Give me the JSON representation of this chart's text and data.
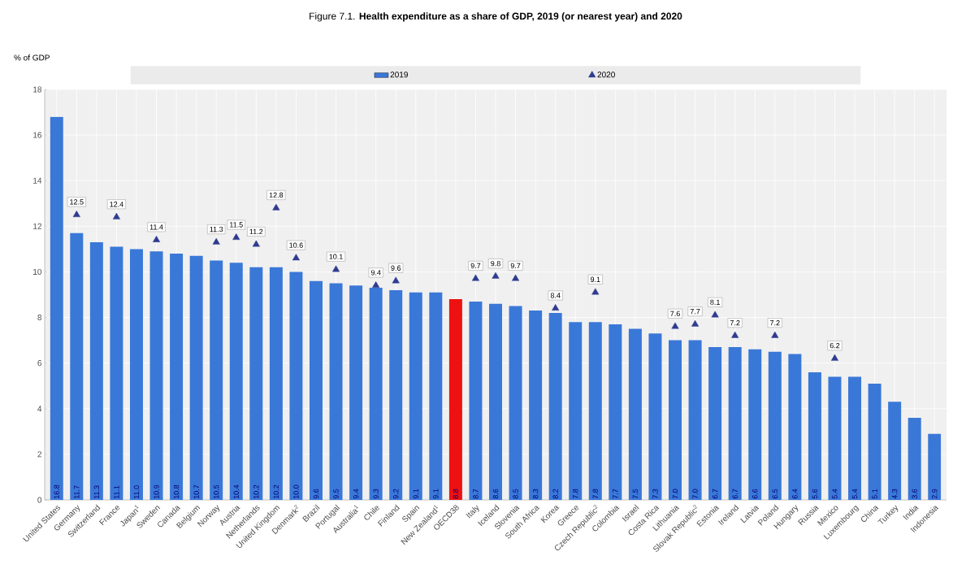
{
  "chart_data": {
    "type": "bar",
    "title": "Figure 7.1. **Health expenditure as a share of GDP, 2019 (or nearest year) and 2020**",
    "ylabel": "% of GDP",
    "categories": [
      "United States",
      "Germany",
      "Switzerland",
      "France",
      "Japan$^{1}$",
      "Sweden",
      "Canada",
      "Belgium",
      "Norway",
      "Austria",
      "Netherlands",
      "United Kingdom",
      "Denmark$^{2}$",
      "Brazil",
      "Portugal",
      "Australia$^{1}$",
      "Chile",
      "Finland",
      "Spain",
      "New Zealand$^{1}$",
      "OECD38",
      "Italy",
      "Iceland",
      "Slovenia",
      "South Africa",
      "Korea",
      "Greece",
      "Czech Republic$^{2}$",
      "Colombia",
      "Israel",
      "Costa Rica",
      "Lithuania",
      "Slovak Republic$^{2}$",
      "Estonia",
      "Ireland",
      "Latvia",
      "Poland",
      "Hungary",
      "Russia",
      "Mexico",
      "Luxembourg",
      "China",
      "Turkey",
      "India",
      "Indonesia"
    ],
    "series": [
      {
        "name": "2019",
        "color": "#3a78d8",
        "colors": [
          "#3a78d8",
          "#3a78d8",
          "#3a78d8",
          "#3a78d8",
          "#3a78d8",
          "#3a78d8",
          "#3a78d8",
          "#3a78d8",
          "#3a78d8",
          "#3a78d8",
          "#3a78d8",
          "#3a78d8",
          "#3a78d8",
          "#3a78d8",
          "#3a78d8",
          "#3a78d8",
          "#3a78d8",
          "#3a78d8",
          "#3a78d8",
          "#3a78d8",
          "#ee1111",
          "#3a78d8",
          "#3a78d8",
          "#3a78d8",
          "#3a78d8",
          "#3a78d8",
          "#3a78d8",
          "#3a78d8",
          "#3a78d8",
          "#3a78d8",
          "#3a78d8",
          "#3a78d8",
          "#3a78d8",
          "#3a78d8",
          "#3a78d8",
          "#3a78d8",
          "#3a78d8",
          "#3a78d8",
          "#3a78d8",
          "#3a78d8",
          "#3a78d8",
          "#3a78d8",
          "#3a78d8",
          "#3a78d8",
          "#3a78d8"
        ],
        "values": [
          16.8,
          11.7,
          11.3,
          11.1,
          11.0,
          10.9,
          10.8,
          10.7,
          10.5,
          10.4,
          10.2,
          10.2,
          10.0,
          9.6,
          9.5,
          9.4,
          9.3,
          9.2,
          9.1,
          9.1,
          8.8,
          8.7,
          8.6,
          8.5,
          8.3,
          8.2,
          7.8,
          7.8,
          7.7,
          7.5,
          7.3,
          7.0,
          7.0,
          6.7,
          6.7,
          6.6,
          6.5,
          6.4,
          5.6,
          5.4,
          5.4,
          5.1,
          4.3,
          3.6,
          2.9
        ],
        "value_labels": [
          "16.8",
          "11.7",
          "11.3",
          "11.1",
          "11.0",
          "10.9",
          "10.8",
          "10.7",
          "10.5",
          "10.4",
          "10.2",
          "10.2",
          "10.0",
          "9.6",
          "9.5",
          "9.4",
          "9.3",
          "9.2",
          "9.1",
          "9.1",
          "8.8",
          "8.7",
          "8.6",
          "8.5",
          "8.3",
          "8.2",
          "7.8",
          "7.8",
          "7.7",
          "7.5",
          "7.3",
          "7.0",
          "7.0",
          "6.7",
          "6.7",
          "6.6",
          "6.5",
          "6.4",
          "5.6",
          "5.4",
          "5.4",
          "5.1",
          "4.3",
          "3.6",
          "2.9"
        ]
      },
      {
        "name": "2020",
        "type": "scatter",
        "color": "#2e3b8f",
        "marker": "triangle",
        "values": [
          null,
          12.5,
          null,
          12.4,
          null,
          11.4,
          null,
          null,
          11.3,
          11.5,
          11.2,
          12.8,
          10.6,
          null,
          10.1,
          null,
          9.4,
          9.6,
          null,
          null,
          null,
          9.7,
          9.8,
          9.7,
          null,
          8.4,
          null,
          9.1,
          null,
          null,
          null,
          7.6,
          7.7,
          8.1,
          7.2,
          null,
          7.2,
          null,
          null,
          6.2,
          null,
          null,
          null,
          null,
          null
        ],
        "value_labels": [
          null,
          "12.5",
          null,
          "12.4",
          null,
          "11.4",
          null,
          null,
          "11.3",
          "11.5",
          "11.2",
          "12.8",
          "10.6",
          null,
          "10.1",
          null,
          "9.4",
          "9.6",
          null,
          null,
          null,
          "9.7",
          "9.8",
          "9.7",
          null,
          "8.4",
          null,
          "9.1",
          null,
          null,
          null,
          "7.6",
          "7.7",
          "8.1",
          "7.2",
          null,
          "7.2",
          null,
          null,
          "6.2",
          null,
          null,
          null,
          null,
          null
        ]
      }
    ],
    "ylim": [
      0,
      18
    ],
    "yticks": [
      0,
      2,
      4,
      6,
      8,
      10,
      12,
      14,
      16,
      18
    ],
    "grid": true,
    "legend": "top"
  }
}
